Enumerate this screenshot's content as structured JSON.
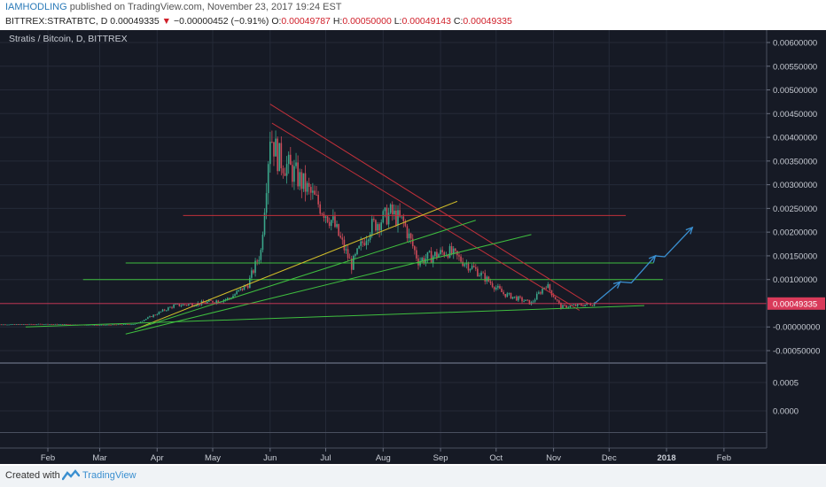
{
  "header": {
    "author": "IAMHODLING",
    "published": "published on TradingView.com, November 23, 2017 19:24 EST",
    "symbol": "BITTREX:STRATBTC, D",
    "last": "0.00049335",
    "change_arrow": "▼",
    "change": "−0.00000452 (−0.91%)",
    "o_label": "O:",
    "o": "0.00049787",
    "h_label": "H:",
    "h": "0.00050000",
    "l_label": "L:",
    "l": "0.00049143",
    "c_label": "C:",
    "c": "0.00049335"
  },
  "footer": {
    "created_with": "Created with",
    "brand": "TradingView"
  },
  "colors": {
    "background": "#161a25",
    "grid": "#252a38",
    "up": "#3aa68a",
    "down": "#c94a58",
    "price_line": "#d93a5a",
    "support_green": "#3fbf3f",
    "resistance_red": "#c0303a",
    "yellow": "#d4c02a",
    "projection": "#3a8fd0"
  },
  "chart_data": {
    "type": "candlestick",
    "title": "Stratis / Bitcoin, D, BITTREX",
    "x_ticks": [
      "Feb",
      "Mar",
      "Apr",
      "May",
      "Jun",
      "Jul",
      "Aug",
      "Sep",
      "Oct",
      "Nov",
      "Dec",
      "2018",
      "Feb"
    ],
    "y_ticks": [
      "0.00600000",
      "0.00550000",
      "0.00500000",
      "0.00450000",
      "0.00400000",
      "0.00350000",
      "0.00300000",
      "0.00250000",
      "0.00200000",
      "0.00150000",
      "0.00100000",
      "-0.00000000",
      "-0.00050000"
    ],
    "ylim": [
      -0.0007,
      0.0063
    ],
    "current_price_label": "0.00049335",
    "current_price": 0.00049335,
    "lower_pane": {
      "y_ticks": [
        "0.0005",
        "0.0000"
      ]
    },
    "price_path": [
      {
        "d": "2017-01-01",
        "v": 5e-05
      },
      {
        "d": "2017-02-01",
        "v": 6e-05
      },
      {
        "d": "2017-03-01",
        "v": 4e-05
      },
      {
        "d": "2017-03-20",
        "v": 6e-05
      },
      {
        "d": "2017-04-10",
        "v": 0.00045
      },
      {
        "d": "2017-04-25",
        "v": 0.0005
      },
      {
        "d": "2017-05-10",
        "v": 0.0006
      },
      {
        "d": "2017-05-20",
        "v": 0.0009
      },
      {
        "d": "2017-05-27",
        "v": 0.0016
      },
      {
        "d": "2017-06-01",
        "v": 0.0041
      },
      {
        "d": "2017-06-05",
        "v": 0.0036
      },
      {
        "d": "2017-06-15",
        "v": 0.0032
      },
      {
        "d": "2017-06-25",
        "v": 0.0027
      },
      {
        "d": "2017-07-05",
        "v": 0.0022
      },
      {
        "d": "2017-07-15",
        "v": 0.0013
      },
      {
        "d": "2017-07-25",
        "v": 0.0021
      },
      {
        "d": "2017-08-05",
        "v": 0.0024
      },
      {
        "d": "2017-08-12",
        "v": 0.0022
      },
      {
        "d": "2017-08-20",
        "v": 0.0014
      },
      {
        "d": "2017-09-05",
        "v": 0.0016
      },
      {
        "d": "2017-09-20",
        "v": 0.0012
      },
      {
        "d": "2017-10-05",
        "v": 0.0007
      },
      {
        "d": "2017-10-20",
        "v": 0.0005
      },
      {
        "d": "2017-10-28",
        "v": 0.0009
      },
      {
        "d": "2017-11-05",
        "v": 0.00042
      },
      {
        "d": "2017-11-23",
        "v": 0.00049
      }
    ],
    "drawings": {
      "horizontal_lines": [
        {
          "price": 0.00235,
          "from": "2017-04-15",
          "to": "2017-12-10",
          "color": "red"
        },
        {
          "price": 0.00135,
          "from": "2017-03-15",
          "to": "2017-12-25",
          "color": "green"
        },
        {
          "price": 0.001,
          "from": "2017-02-20",
          "to": "2017-12-30",
          "color": "green"
        }
      ],
      "trend_lines": [
        {
          "from": [
            "2017-06-01",
            0.0047
          ],
          "to": [
            "2017-11-20",
            0.00049
          ],
          "color": "red"
        },
        {
          "from": [
            "2017-06-02",
            0.0043
          ],
          "to": [
            "2017-11-15",
            0.00035
          ],
          "color": "red"
        },
        {
          "from": [
            "2017-03-20",
            -5e-05
          ],
          "to": [
            "2017-09-10",
            0.00265
          ],
          "color": "yellow"
        },
        {
          "from": [
            "2017-03-20",
            -5e-05
          ],
          "to": [
            "2017-09-20",
            0.00225
          ],
          "color": "green"
        },
        {
          "from": [
            "2017-03-15",
            -0.00015
          ],
          "to": [
            "2017-10-20",
            0.00195
          ],
          "color": "green"
        },
        {
          "from": [
            "2017-01-20",
            0.0
          ],
          "to": [
            "2017-12-20",
            0.00045
          ],
          "color": "green"
        }
      ],
      "projection": [
        {
          "d": "2017-11-23",
          "v": 0.00049
        },
        {
          "d": "2017-12-07",
          "v": 0.00095
        },
        {
          "d": "2017-12-13",
          "v": 0.00093
        },
        {
          "d": "2017-12-26",
          "v": 0.0015
        },
        {
          "d": "2017-12-31",
          "v": 0.00148
        },
        {
          "d": "2018-01-15",
          "v": 0.0021
        }
      ]
    }
  }
}
